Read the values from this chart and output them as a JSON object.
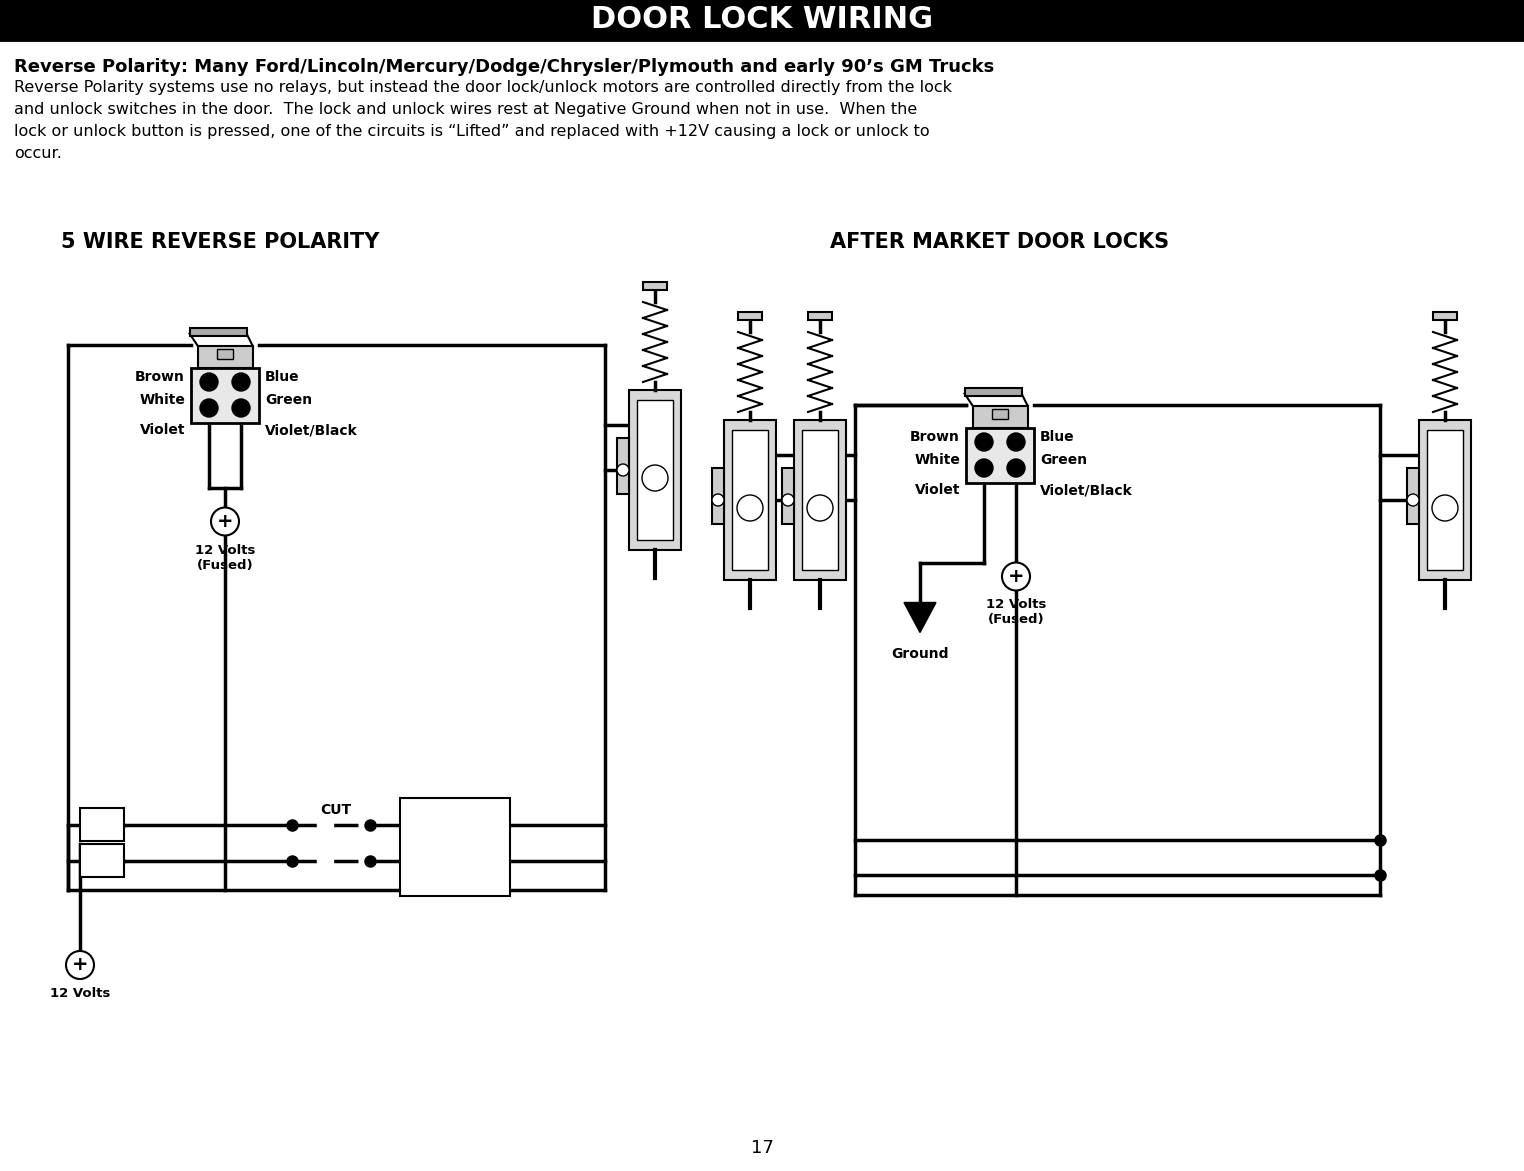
{
  "title": "DOOR LOCK WIRING",
  "bg_color": "#ffffff",
  "heading1": "Reverse Polarity: Many Ford/Lincoln/Mercury/Dodge/Chrysler/Plymouth and early 90’s GM Trucks",
  "body_line1": "Reverse Polarity systems use no relays, but instead the door lock/unlock motors are controlled directly from the lock",
  "body_line2": "and unlock switches in the door.  The lock and unlock wires rest at Negative Ground when not in use.  When the",
  "body_line3": "lock or unlock button is pressed, one of the circuits is “Lifted” and replaced with +12V causing a lock or unlock to",
  "body_line4": "occur.",
  "left_title": "5 WIRE REVERSE POLARITY",
  "right_title": "AFTER MARKET DOOR LOCKS",
  "page_number": "17",
  "lw": 2.5
}
